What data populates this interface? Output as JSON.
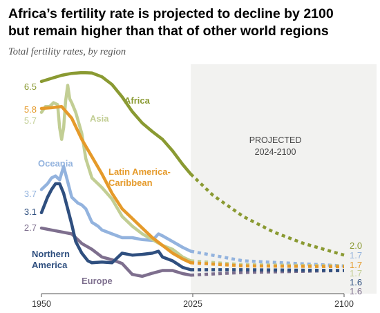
{
  "title_lines": [
    "Africa’s fertility rate is projected to decline by 2100",
    "but remain higher than that of other world regions"
  ],
  "subtitle": "Total fertility rates, by region",
  "chart_data": {
    "type": "line",
    "xlim": [
      1950,
      2100
    ],
    "ylim": [
      1.0,
      7.0
    ],
    "x_ticks": [
      "1950",
      "2025",
      "2100"
    ],
    "projection": {
      "label_lines": [
        "PROJECTED",
        "2024-2100"
      ],
      "start": 2024,
      "end": 2100
    },
    "series": [
      {
        "name": "Africa",
        "color": "#8a9a32",
        "start_label": "6.5",
        "end_label": "2.0",
        "historical": [
          [
            1950,
            6.5
          ],
          [
            1955,
            6.58
          ],
          [
            1960,
            6.66
          ],
          [
            1965,
            6.71
          ],
          [
            1970,
            6.73
          ],
          [
            1975,
            6.72
          ],
          [
            1980,
            6.62
          ],
          [
            1985,
            6.42
          ],
          [
            1990,
            6.1
          ],
          [
            1995,
            5.72
          ],
          [
            2000,
            5.42
          ],
          [
            2005,
            5.2
          ],
          [
            2010,
            5.0
          ],
          [
            2015,
            4.7
          ],
          [
            2020,
            4.35
          ],
          [
            2024,
            4.1
          ]
        ],
        "projected": [
          [
            2024,
            4.1
          ],
          [
            2035,
            3.55
          ],
          [
            2050,
            3.0
          ],
          [
            2065,
            2.6
          ],
          [
            2080,
            2.3
          ],
          [
            2100,
            2.0
          ]
        ]
      },
      {
        "name": "Asia",
        "color": "#c2ce94",
        "start_label": "5.7",
        "end_label": "1.7",
        "historical": [
          [
            1950,
            5.7
          ],
          [
            1952,
            5.85
          ],
          [
            1954,
            5.85
          ],
          [
            1956,
            5.95
          ],
          [
            1958,
            5.9
          ],
          [
            1959,
            5.3
          ],
          [
            1960,
            5.0
          ],
          [
            1961,
            5.3
          ],
          [
            1962,
            6.0
          ],
          [
            1963,
            6.4
          ],
          [
            1964,
            6.05
          ],
          [
            1965,
            5.95
          ],
          [
            1967,
            5.7
          ],
          [
            1970,
            5.15
          ],
          [
            1972,
            4.5
          ],
          [
            1975,
            4.0
          ],
          [
            1980,
            3.75
          ],
          [
            1985,
            3.45
          ],
          [
            1990,
            3.0
          ],
          [
            1995,
            2.75
          ],
          [
            2000,
            2.55
          ],
          [
            2005,
            2.4
          ],
          [
            2010,
            2.25
          ],
          [
            2015,
            2.15
          ],
          [
            2020,
            1.95
          ],
          [
            2024,
            1.85
          ]
        ],
        "projected": [
          [
            2024,
            1.85
          ],
          [
            2050,
            1.75
          ],
          [
            2100,
            1.72
          ]
        ]
      },
      {
        "name": "Latin America-Caribbean",
        "label_lines": [
          "Latin America-",
          "Caribbean"
        ],
        "color": "#e59a2a",
        "start_label": "5.8",
        "end_label": "1.7",
        "historical": [
          [
            1950,
            5.8
          ],
          [
            1955,
            5.82
          ],
          [
            1960,
            5.85
          ],
          [
            1965,
            5.55
          ],
          [
            1970,
            5.0
          ],
          [
            1975,
            4.55
          ],
          [
            1980,
            4.1
          ],
          [
            1985,
            3.6
          ],
          [
            1990,
            3.2
          ],
          [
            1995,
            2.95
          ],
          [
            2000,
            2.7
          ],
          [
            2005,
            2.45
          ],
          [
            2010,
            2.25
          ],
          [
            2015,
            2.05
          ],
          [
            2020,
            1.9
          ],
          [
            2024,
            1.8
          ]
        ],
        "projected": [
          [
            2024,
            1.8
          ],
          [
            2050,
            1.72
          ],
          [
            2100,
            1.7
          ]
        ]
      },
      {
        "name": "Oceania",
        "color": "#93b3de",
        "start_label": "3.7",
        "end_label": "1.7",
        "historical": [
          [
            1950,
            3.7
          ],
          [
            1953,
            3.85
          ],
          [
            1955,
            4.0
          ],
          [
            1957,
            4.05
          ],
          [
            1959,
            3.95
          ],
          [
            1961,
            4.3
          ],
          [
            1963,
            3.9
          ],
          [
            1965,
            3.5
          ],
          [
            1968,
            3.35
          ],
          [
            1970,
            3.3
          ],
          [
            1972,
            3.2
          ],
          [
            1975,
            2.85
          ],
          [
            1978,
            2.75
          ],
          [
            1980,
            2.65
          ],
          [
            1985,
            2.55
          ],
          [
            1990,
            2.45
          ],
          [
            1995,
            2.45
          ],
          [
            2000,
            2.4
          ],
          [
            2005,
            2.38
          ],
          [
            2008,
            2.55
          ],
          [
            2010,
            2.5
          ],
          [
            2015,
            2.35
          ],
          [
            2020,
            2.2
          ],
          [
            2024,
            2.1
          ]
        ],
        "projected": [
          [
            2024,
            2.1
          ],
          [
            2050,
            1.85
          ],
          [
            2100,
            1.72
          ]
        ]
      },
      {
        "name": "Northern America",
        "label_lines": [
          "Northern",
          "America"
        ],
        "color": "#2f4f7f",
        "start_label": "3.1",
        "end_label": "1.6",
        "historical": [
          [
            1950,
            3.1
          ],
          [
            1953,
            3.5
          ],
          [
            1955,
            3.7
          ],
          [
            1957,
            3.85
          ],
          [
            1959,
            3.85
          ],
          [
            1961,
            3.6
          ],
          [
            1963,
            3.2
          ],
          [
            1965,
            2.8
          ],
          [
            1967,
            2.35
          ],
          [
            1970,
            2.05
          ],
          [
            1973,
            1.85
          ],
          [
            1975,
            1.8
          ],
          [
            1980,
            1.82
          ],
          [
            1985,
            1.8
          ],
          [
            1990,
            2.05
          ],
          [
            1995,
            2.0
          ],
          [
            2000,
            2.02
          ],
          [
            2005,
            2.05
          ],
          [
            2008,
            2.1
          ],
          [
            2010,
            1.95
          ],
          [
            2015,
            1.85
          ],
          [
            2020,
            1.68
          ],
          [
            2024,
            1.62
          ]
        ],
        "projected": [
          [
            2024,
            1.62
          ],
          [
            2050,
            1.62
          ],
          [
            2100,
            1.6
          ]
        ]
      },
      {
        "name": "Europe",
        "color": "#7e6f8e",
        "start_label": "2.7",
        "end_label": "1.6",
        "historical": [
          [
            1950,
            2.7
          ],
          [
            1955,
            2.65
          ],
          [
            1960,
            2.6
          ],
          [
            1965,
            2.55
          ],
          [
            1970,
            2.3
          ],
          [
            1975,
            2.15
          ],
          [
            1980,
            1.95
          ],
          [
            1985,
            1.88
          ],
          [
            1990,
            1.78
          ],
          [
            1995,
            1.5
          ],
          [
            2000,
            1.45
          ],
          [
            2005,
            1.53
          ],
          [
            2010,
            1.6
          ],
          [
            2015,
            1.6
          ],
          [
            2020,
            1.52
          ],
          [
            2024,
            1.48
          ]
        ],
        "projected": [
          [
            2024,
            1.48
          ],
          [
            2050,
            1.55
          ],
          [
            2100,
            1.6
          ]
        ]
      }
    ]
  }
}
